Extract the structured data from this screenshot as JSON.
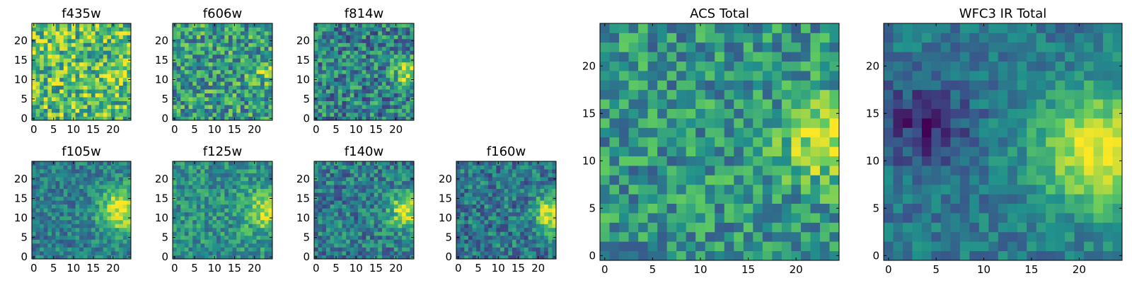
{
  "colormap": [
    "#440154",
    "#3b528b",
    "#21918c",
    "#5ec962",
    "#fde725"
  ],
  "chart_data": {
    "type": "heatmap",
    "grid_size": 25,
    "panels": [
      {
        "id": "f435w",
        "title": "f435w",
        "xticks": [
          "0",
          "5",
          "10",
          "15",
          "20"
        ],
        "yticks": [
          "0",
          "5",
          "10",
          "15",
          "20"
        ],
        "pattern": {
          "seed": 11,
          "base": 0.7,
          "noise": 0.32,
          "src_amp": 0.05,
          "src_x": 21,
          "src_y": 11,
          "src_sigma": 3.0
        }
      },
      {
        "id": "f606w",
        "title": "f606w",
        "xticks": [
          "0",
          "5",
          "10",
          "15",
          "20"
        ],
        "yticks": [
          "0",
          "5",
          "10",
          "15",
          "20"
        ],
        "pattern": {
          "seed": 23,
          "base": 0.55,
          "noise": 0.3,
          "src_amp": 0.25,
          "src_x": 23,
          "src_y": 12,
          "src_sigma": 2.2
        }
      },
      {
        "id": "f814w",
        "title": "f814w",
        "xticks": [
          "0",
          "5",
          "10",
          "15",
          "20"
        ],
        "yticks": [
          "0",
          "5",
          "10",
          "15",
          "20"
        ],
        "pattern": {
          "seed": 37,
          "base": 0.45,
          "noise": 0.28,
          "src_amp": 0.45,
          "src_x": 23,
          "src_y": 12,
          "src_sigma": 2.5
        }
      },
      {
        "id": "f105w",
        "title": "f105w",
        "xticks": [
          "0",
          "5",
          "10",
          "15",
          "20"
        ],
        "yticks": [
          "0",
          "5",
          "10",
          "15",
          "20"
        ],
        "pattern": {
          "seed": 41,
          "base": 0.42,
          "noise": 0.18,
          "src_amp": 0.55,
          "src_x": 22,
          "src_y": 12,
          "src_sigma": 4.0
        }
      },
      {
        "id": "f125w",
        "title": "f125w",
        "xticks": [
          "0",
          "5",
          "10",
          "15",
          "20"
        ],
        "yticks": [
          "0",
          "5",
          "10",
          "15",
          "20"
        ],
        "pattern": {
          "seed": 53,
          "base": 0.5,
          "noise": 0.2,
          "src_amp": 0.45,
          "src_x": 23,
          "src_y": 12,
          "src_sigma": 3.5
        }
      },
      {
        "id": "f140w",
        "title": "f140w",
        "xticks": [
          "0",
          "5",
          "10",
          "15",
          "20"
        ],
        "yticks": [
          "0",
          "5",
          "10",
          "15",
          "20"
        ],
        "pattern": {
          "seed": 67,
          "base": 0.42,
          "noise": 0.22,
          "src_amp": 0.5,
          "src_x": 23,
          "src_y": 12,
          "src_sigma": 3.5
        }
      },
      {
        "id": "f160w",
        "title": "f160w",
        "xticks": [
          "0",
          "5",
          "10",
          "15",
          "20"
        ],
        "yticks": [
          "0",
          "5",
          "10",
          "15",
          "20"
        ],
        "pattern": {
          "seed": 79,
          "base": 0.4,
          "noise": 0.22,
          "src_amp": 0.6,
          "src_x": 24,
          "src_y": 11,
          "src_sigma": 3.2
        }
      },
      {
        "id": "acs-total",
        "title": "ACS Total",
        "xticks": [
          "0",
          "5",
          "10",
          "15",
          "20"
        ],
        "yticks": [
          "0",
          "5",
          "10",
          "15",
          "20"
        ],
        "pattern": {
          "seed": 97,
          "base": 0.52,
          "noise": 0.24,
          "src_amp": 0.4,
          "src_x": 23,
          "src_y": 12,
          "src_sigma": 3.0
        }
      },
      {
        "id": "wfc3-ir-total",
        "title": "WFC3 IR Total",
        "xticks": [
          "0",
          "5",
          "10",
          "15",
          "20"
        ],
        "yticks": [
          "0",
          "5",
          "10",
          "15",
          "20"
        ],
        "pattern": {
          "seed": 113,
          "base": 0.4,
          "noise": 0.14,
          "src_amp": 0.58,
          "src_x": 22,
          "src_y": 11,
          "src_sigma": 4.5,
          "dark_amp": 0.3,
          "dark_x": 4,
          "dark_y": 14,
          "dark_sigma": 3.0
        }
      }
    ]
  }
}
